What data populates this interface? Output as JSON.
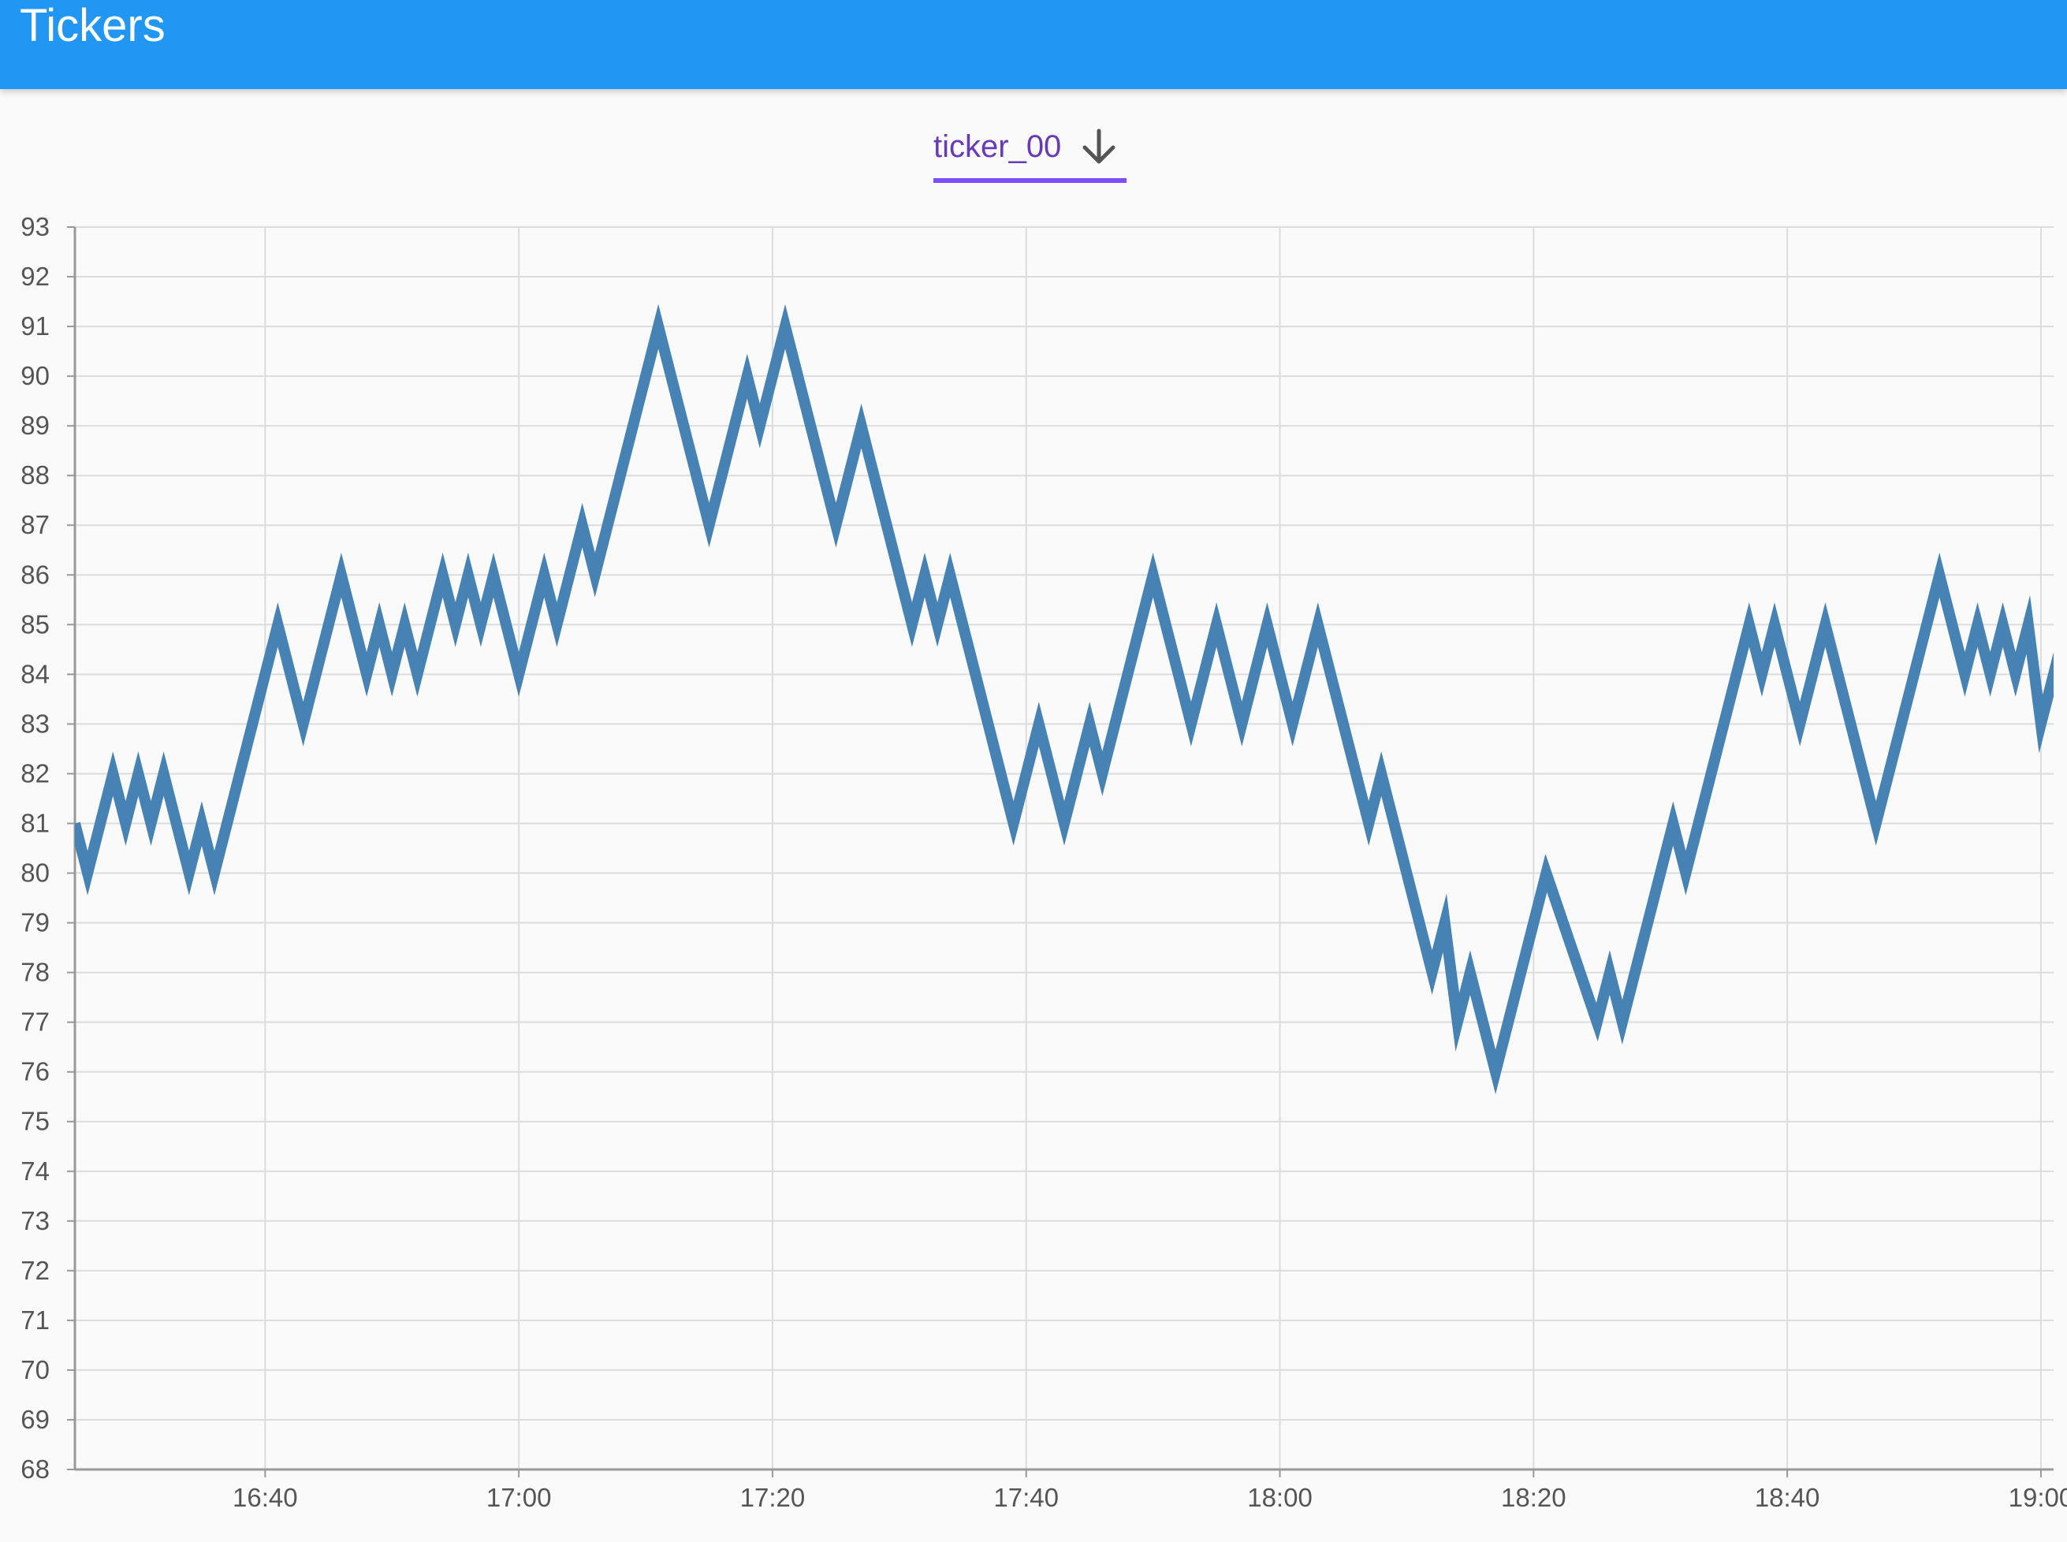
{
  "app_bar": {
    "title": "Tickers",
    "color": "#2196f3"
  },
  "tabs": [
    {
      "label": "ticker_00",
      "icon": "arrow-down-icon",
      "selected": true
    }
  ],
  "chart_data": {
    "type": "line",
    "title": "",
    "xlabel": "",
    "ylabel": "",
    "ylim": [
      68,
      93
    ],
    "xlim": [
      "16:25",
      "19:01"
    ],
    "x_ticks": [
      "16:40",
      "17:00",
      "17:20",
      "17:40",
      "18:00",
      "18:20",
      "18:40",
      "19:00"
    ],
    "y_ticks": [
      68,
      69,
      70,
      71,
      72,
      73,
      74,
      75,
      76,
      77,
      78,
      79,
      80,
      81,
      82,
      83,
      84,
      85,
      86,
      87,
      88,
      89,
      90,
      91,
      92,
      93
    ],
    "grid": true,
    "series": [
      {
        "color": "#4682b4",
        "x": [
          "16:25",
          "16:26",
          "16:28",
          "16:29",
          "16:30",
          "16:31",
          "16:32",
          "16:34",
          "16:35",
          "16:36",
          "16:41",
          "16:43",
          "16:46",
          "16:48",
          "16:49",
          "16:50",
          "16:51",
          "16:52",
          "16:54",
          "16:55",
          "16:56",
          "16:57",
          "16:58",
          "17:00",
          "17:02",
          "17:03",
          "17:05",
          "17:06",
          "17:11",
          "17:15",
          "17:18",
          "17:19",
          "17:21",
          "17:25",
          "17:27",
          "17:31",
          "17:32",
          "17:33",
          "17:34",
          "17:39",
          "17:41",
          "17:43",
          "17:45",
          "17:46",
          "17:50",
          "17:53",
          "17:55",
          "17:57",
          "17:59",
          "18:01",
          "18:03",
          "18:07",
          "18:08",
          "18:12",
          "18:13",
          "18:14",
          "18:15",
          "18:17",
          "18:21",
          "18:25",
          "18:26",
          "18:27",
          "18:31",
          "18:32",
          "18:37",
          "18:38",
          "18:39",
          "18:41",
          "18:43",
          "18:47",
          "18:52",
          "18:54",
          "18:55",
          "18:56",
          "18:57",
          "18:58",
          "18:59",
          "19:00",
          "19:01",
          "19:02"
        ],
        "y": [
          81,
          80,
          82,
          81,
          82,
          81,
          82,
          80,
          81,
          80,
          85,
          83,
          86,
          84,
          85,
          84,
          85,
          84,
          86,
          85,
          86,
          85,
          86,
          84,
          86,
          85,
          87,
          86,
          91,
          87,
          90,
          89,
          91,
          87,
          89,
          85,
          86,
          85,
          86,
          81,
          83,
          81,
          83,
          82,
          86,
          83,
          85,
          83,
          85,
          83,
          85,
          81,
          82,
          78,
          79,
          77,
          78,
          76,
          80,
          77,
          78,
          77,
          81,
          80,
          85,
          84,
          85,
          83,
          85,
          81,
          86,
          84,
          85,
          84,
          85,
          84,
          85,
          83,
          84,
          83
        ]
      }
    ]
  }
}
